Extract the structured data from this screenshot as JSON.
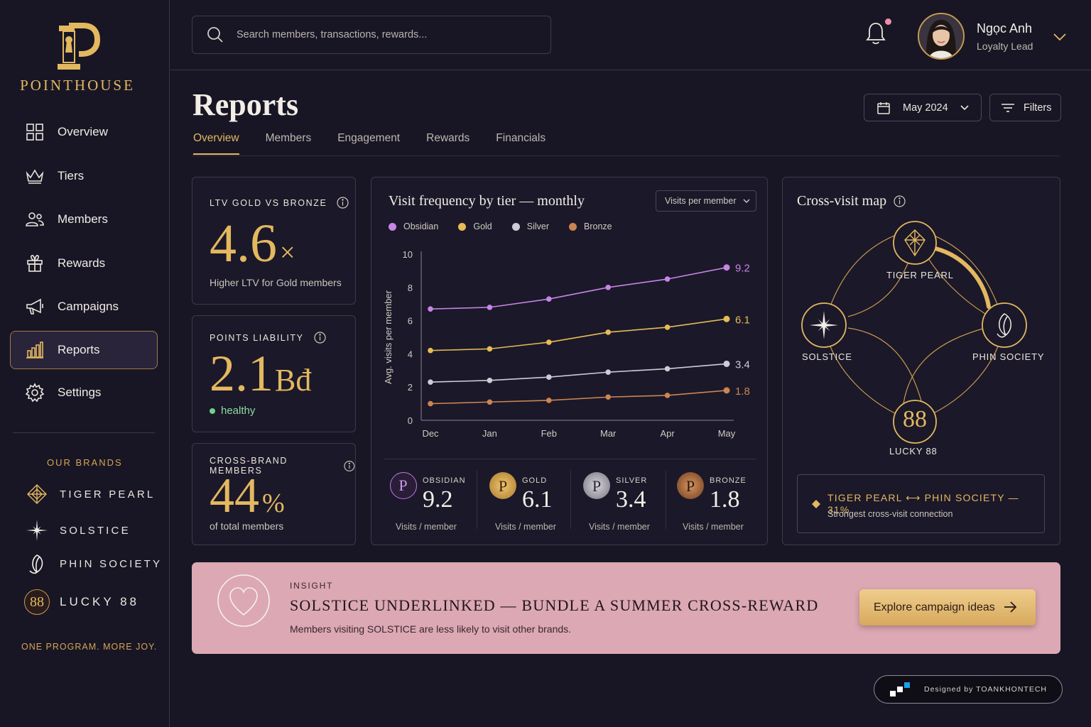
{
  "app": {
    "name": "POINTHOUSE",
    "logo_letter": "P"
  },
  "nav": {
    "items": [
      {
        "label": "Overview",
        "icon": "grid-icon"
      },
      {
        "label": "Tiers",
        "icon": "crown-icon"
      },
      {
        "label": "Members",
        "icon": "users-icon"
      },
      {
        "label": "Rewards",
        "icon": "gift-icon"
      },
      {
        "label": "Campaigns",
        "icon": "megaphone-icon"
      },
      {
        "label": "Reports",
        "icon": "bar-chart-icon",
        "active": true
      },
      {
        "label": "Settings",
        "icon": "gear-icon"
      }
    ]
  },
  "brands": {
    "title": "OUR BRANDS",
    "items": [
      {
        "label": "TIGER PEARL",
        "icon": "diamond-icon"
      },
      {
        "label": "SOLSTICE",
        "icon": "star-icon"
      },
      {
        "label": "PHIN SOCIETY",
        "icon": "leaf-icon"
      },
      {
        "label": "LUCKY 88",
        "icon": "88-badge-icon",
        "badge": "88"
      }
    ],
    "tagline": "ONE PROGRAM. MORE JOY."
  },
  "search": {
    "placeholder": "Search members, transactions, rewards..."
  },
  "user": {
    "name": "Ngọc Anh",
    "role": "Loyalty Lead",
    "has_notification": true
  },
  "page": {
    "title": "Reports",
    "tabs": [
      "Overview",
      "Members",
      "Engagement",
      "Rewards",
      "Financials"
    ],
    "active_tab": "Overview",
    "date": "May 2024",
    "filters": "Filters"
  },
  "kpis": [
    {
      "label": "LTV GOLD VS BRONZE",
      "value": "4.6",
      "unit": "×",
      "sub": "Higher LTV for Gold members"
    },
    {
      "label": "POINTS LIABILITY",
      "value": "2.1",
      "unit": "Bđ",
      "sub": "healthy",
      "status_color": "#6ed38a"
    },
    {
      "label": "CROSS-BRAND MEMBERS",
      "value": "44",
      "unit": "%",
      "sub": "of total members"
    }
  ],
  "visit_chart": {
    "title": "Visit frequency by tier — monthly",
    "selector": "Visits per member"
  },
  "chart_data": {
    "type": "line",
    "title": "Visit frequency by tier — monthly",
    "categories": [
      "Dec",
      "Jan",
      "Feb",
      "Mar",
      "Apr",
      "May"
    ],
    "ylabel": "Avg. visits per member",
    "ylim": [
      0,
      10
    ],
    "yticks": [
      0,
      2,
      4,
      6,
      8,
      10
    ],
    "grid": false,
    "legend": "top-left",
    "series": [
      {
        "name": "Obsidian",
        "color": "#c884e6",
        "values": [
          6.7,
          6.8,
          7.3,
          8.0,
          8.5,
          9.2
        ],
        "end_label": "9.2"
      },
      {
        "name": "Gold",
        "color": "#e6bc55",
        "values": [
          4.2,
          4.3,
          4.7,
          5.3,
          5.6,
          6.1
        ],
        "end_label": "6.1"
      },
      {
        "name": "Silver",
        "color": "#cfcbd6",
        "values": [
          2.3,
          2.4,
          2.6,
          2.9,
          3.1,
          3.4
        ],
        "end_label": "3.4"
      },
      {
        "name": "Bronze",
        "color": "#cc8552",
        "values": [
          1.0,
          1.1,
          1.2,
          1.4,
          1.5,
          1.8
        ],
        "end_label": "1.8"
      }
    ]
  },
  "tier_stats": [
    {
      "name": "OBSIDIAN",
      "value": "9.2",
      "sub": "Visits / member",
      "color": "#b97be0"
    },
    {
      "name": "GOLD",
      "value": "6.1",
      "sub": "Visits / member",
      "color": "#e3b85f"
    },
    {
      "name": "SILVER",
      "value": "3.4",
      "sub": "Visits / member",
      "color": "#c8c4cf"
    },
    {
      "name": "BRONZE",
      "value": "1.8",
      "sub": "Visits / member",
      "color": "#c8864f"
    }
  ],
  "cross_map": {
    "title": "Cross-visit map",
    "nodes": [
      "TIGER PEARL",
      "SOLSTICE",
      "PHIN SOCIETY",
      "LUCKY 88"
    ],
    "lucky_badge": "88",
    "strongest": "TIGER PEARL ⟷ PHIN SOCIETY — 31%",
    "strongest_sub": "Strongest cross-visit connection"
  },
  "insight": {
    "tag": "INSIGHT",
    "headline": "SOLSTICE UNDERLINKED — BUNDLE A SUMMER CROSS-REWARD",
    "body": "Members visiting SOLSTICE are less likely to visit other brands.",
    "cta": "Explore campaign ideas"
  },
  "credit": "Designed by TOANKHONTECH"
}
